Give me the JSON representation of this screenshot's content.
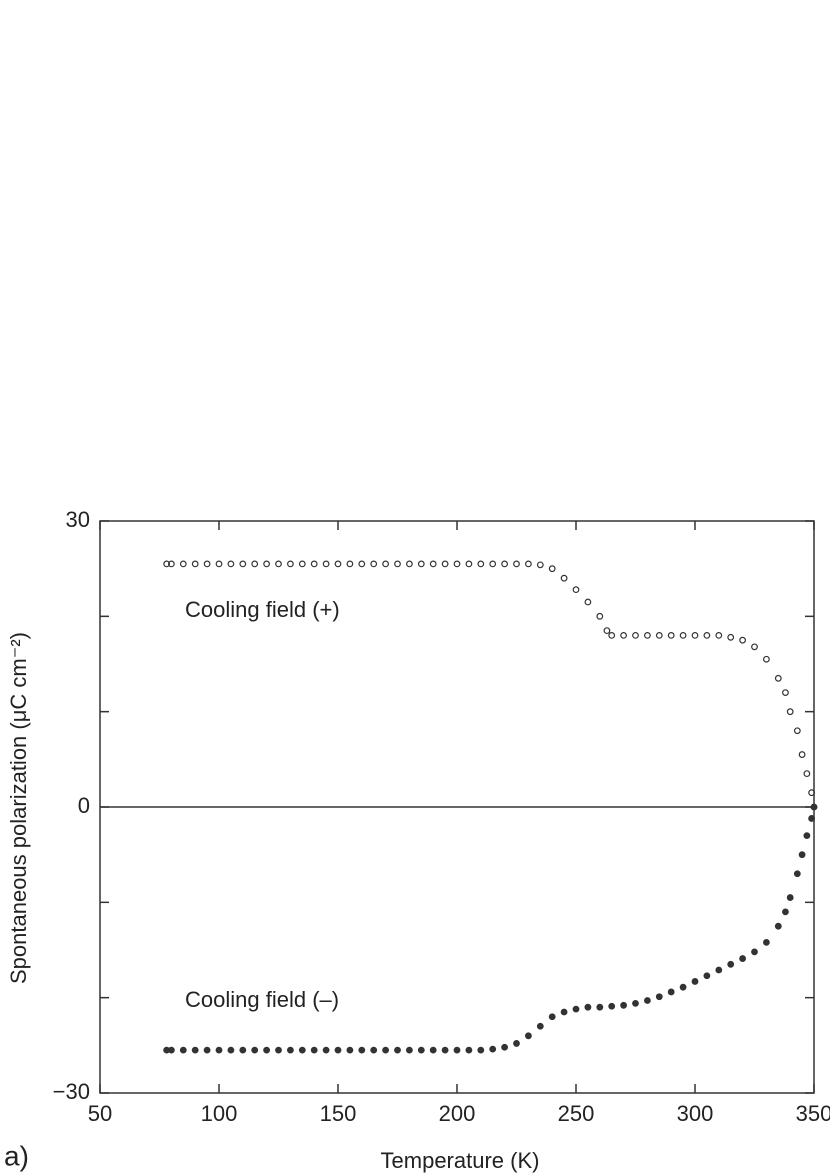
{
  "chart_data": {
    "type": "scatter",
    "xlabel": "Temperature (K)",
    "ylabel": "Spontaneous polarization (μC cm⁻²)",
    "panel_label": "a)",
    "annotations": [
      "Cooling field (+)",
      "Cooling field (–)"
    ],
    "xlim": [
      50,
      350
    ],
    "xticks": [
      50,
      100,
      150,
      200,
      250,
      300,
      350
    ],
    "ylim": [
      -30,
      30
    ],
    "yticks": [
      30,
      0,
      {
        "value": -30,
        "label": "−30"
      }
    ],
    "yminor_ticks": [
      -20,
      -10,
      10,
      20
    ],
    "zero_line": true,
    "series": [
      {
        "color": "#333333",
        "filled": false,
        "x": [
          78,
          80,
          85,
          90,
          95,
          100,
          105,
          110,
          115,
          120,
          125,
          130,
          135,
          140,
          145,
          150,
          155,
          160,
          165,
          170,
          175,
          180,
          185,
          190,
          195,
          200,
          205,
          210,
          215,
          220,
          225,
          230,
          235,
          240,
          245,
          250,
          255,
          260,
          263,
          265,
          270,
          275,
          280,
          285,
          290,
          295,
          300,
          305,
          310,
          315,
          320,
          325,
          330,
          335,
          338,
          340,
          343,
          345,
          347,
          349,
          350
        ],
        "values": [
          25.5,
          25.5,
          25.5,
          25.5,
          25.5,
          25.5,
          25.5,
          25.5,
          25.5,
          25.5,
          25.5,
          25.5,
          25.5,
          25.5,
          25.5,
          25.5,
          25.5,
          25.5,
          25.5,
          25.5,
          25.5,
          25.5,
          25.5,
          25.5,
          25.5,
          25.5,
          25.5,
          25.5,
          25.5,
          25.5,
          25.5,
          25.5,
          25.4,
          25,
          24,
          22.8,
          21.5,
          20,
          18.5,
          18,
          18,
          18,
          18,
          18,
          18,
          18,
          18,
          18,
          18,
          17.8,
          17.5,
          16.8,
          15.5,
          13.5,
          12,
          10,
          8,
          5.5,
          3.5,
          1.5,
          0
        ]
      },
      {
        "color": "#333333",
        "filled": true,
        "x": [
          78,
          80,
          85,
          90,
          95,
          100,
          105,
          110,
          115,
          120,
          125,
          130,
          135,
          140,
          145,
          150,
          155,
          160,
          165,
          170,
          175,
          180,
          185,
          190,
          195,
          200,
          205,
          210,
          215,
          220,
          225,
          230,
          235,
          240,
          245,
          250,
          255,
          260,
          265,
          270,
          275,
          280,
          285,
          290,
          295,
          300,
          305,
          310,
          315,
          320,
          325,
          330,
          335,
          338,
          340,
          343,
          345,
          347,
          349,
          350
        ],
        "values": [
          -25.5,
          -25.5,
          -25.5,
          -25.5,
          -25.5,
          -25.5,
          -25.5,
          -25.5,
          -25.5,
          -25.5,
          -25.5,
          -25.5,
          -25.5,
          -25.5,
          -25.5,
          -25.5,
          -25.5,
          -25.5,
          -25.5,
          -25.5,
          -25.5,
          -25.5,
          -25.5,
          -25.5,
          -25.5,
          -25.5,
          -25.5,
          -25.5,
          -25.4,
          -25.2,
          -24.8,
          -24,
          -23,
          -22,
          -21.5,
          -21.2,
          -21,
          -21,
          -20.9,
          -20.8,
          -20.6,
          -20.3,
          -19.9,
          -19.4,
          -18.9,
          -18.3,
          -17.7,
          -17.1,
          -16.5,
          -15.9,
          -15.2,
          -14.2,
          -12.5,
          -11,
          -9.5,
          -7,
          -5,
          -3,
          -1.2,
          0
        ]
      }
    ]
  }
}
